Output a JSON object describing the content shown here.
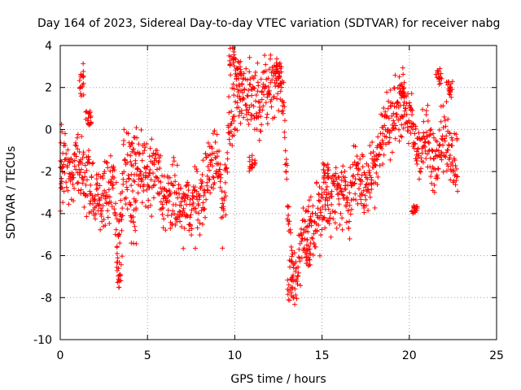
{
  "chart_data": {
    "type": "scatter",
    "title": "Day 164 of 2023, Sidereal Day-to-day VTEC variation (SDTVAR) for receiver nabg",
    "xlabel": "GPS time / hours",
    "ylabel": "SDTVAR / TECUs",
    "xlim": [
      0,
      25
    ],
    "ylim": [
      -10,
      4
    ],
    "xticks": [
      "0",
      "5",
      "10",
      "15",
      "20",
      "25"
    ],
    "yticks": [
      "4",
      "2",
      "0",
      "-2",
      "-4",
      "-6",
      "-8",
      "-10"
    ],
    "grid": true,
    "marker": "+",
    "color": "#ff0000",
    "series": [
      {
        "name": "SDTVAR",
        "trend": [
          [
            0.0,
            -2.0
          ],
          [
            0.3,
            -1.8
          ],
          [
            0.6,
            -2.6
          ],
          [
            0.9,
            -1.5
          ],
          [
            1.2,
            -2.2
          ],
          [
            1.6,
            -2.5
          ],
          [
            2.0,
            -3.4
          ],
          [
            2.4,
            -3.2
          ],
          [
            2.8,
            -2.8
          ],
          [
            3.1,
            -2.4
          ],
          [
            3.3,
            -5.8
          ],
          [
            3.6,
            -2.2
          ],
          [
            4.0,
            -1.8
          ],
          [
            4.5,
            -1.5
          ],
          [
            5.0,
            -2.6
          ],
          [
            5.5,
            -1.9
          ],
          [
            6.0,
            -3.6
          ],
          [
            6.5,
            -3.2
          ],
          [
            7.0,
            -3.9
          ],
          [
            7.5,
            -3.6
          ],
          [
            8.0,
            -3.4
          ],
          [
            8.5,
            -2.0
          ],
          [
            9.0,
            -1.0
          ],
          [
            9.3,
            -4.0
          ],
          [
            9.7,
            0.4
          ],
          [
            10.0,
            1.2
          ],
          [
            10.5,
            1.8
          ],
          [
            11.0,
            1.6
          ],
          [
            11.5,
            1.5
          ],
          [
            12.0,
            2.0
          ],
          [
            12.4,
            2.6
          ],
          [
            12.8,
            1.5
          ],
          [
            13.1,
            -5.2
          ],
          [
            13.4,
            -7.2
          ],
          [
            14.0,
            -5.0
          ],
          [
            14.5,
            -4.2
          ],
          [
            15.0,
            -4.0
          ],
          [
            15.5,
            -3.2
          ],
          [
            16.0,
            -3.0
          ],
          [
            16.5,
            -3.4
          ],
          [
            17.0,
            -2.0
          ],
          [
            17.5,
            -2.8
          ],
          [
            18.0,
            -1.8
          ],
          [
            18.5,
            -0.2
          ],
          [
            19.0,
            0.6
          ],
          [
            19.5,
            1.3
          ],
          [
            20.0,
            0.6
          ],
          [
            20.3,
            -0.6
          ],
          [
            20.6,
            -1.0
          ],
          [
            21.0,
            -0.5
          ],
          [
            21.4,
            -1.6
          ],
          [
            21.8,
            -0.2
          ],
          [
            22.2,
            -0.8
          ],
          [
            22.7,
            -1.5
          ]
        ],
        "bands": [
          [
            0.0,
            -3.4,
            0.8
          ],
          [
            1.2,
            1.5,
            3.2
          ],
          [
            1.6,
            0.2,
            0.9
          ],
          [
            3.4,
            -7.6,
            -6.0
          ],
          [
            4.2,
            -5.5,
            -3.0
          ],
          [
            9.8,
            3.0,
            3.9
          ],
          [
            10.2,
            2.4,
            3.4
          ],
          [
            11.0,
            -2.0,
            -1.0
          ],
          [
            12.5,
            2.4,
            3.2
          ],
          [
            13.2,
            -8.2,
            -7.0
          ],
          [
            14.2,
            -6.5,
            -5.5
          ],
          [
            15.2,
            -2.5,
            -1.5
          ],
          [
            19.6,
            1.5,
            2.2
          ],
          [
            20.3,
            -4.0,
            -3.6
          ],
          [
            21.7,
            2.0,
            3.0
          ],
          [
            22.3,
            1.5,
            2.3
          ]
        ]
      }
    ]
  }
}
